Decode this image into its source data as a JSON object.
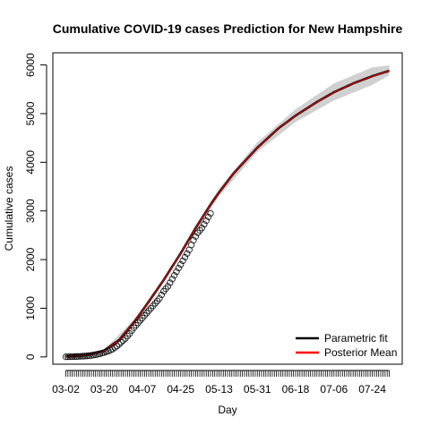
{
  "chart_data": {
    "type": "line",
    "title": "Cumulative COVID-19 cases Prediction for New Hampshire",
    "xlabel": "Day",
    "ylabel": "Cumulative cases",
    "x_start": "03-02",
    "x_end": "08-01",
    "x_tick_labels": [
      "03-02",
      "03-20",
      "04-07",
      "04-25",
      "05-13",
      "05-31",
      "06-18",
      "07-06",
      "07-24"
    ],
    "y_ticks": [
      0,
      1000,
      2000,
      3000,
      4000,
      5000,
      6000
    ],
    "ylim": [
      -150,
      6250
    ],
    "legend": {
      "position": "bottom-right",
      "entries": [
        "Parametric fit",
        "Posterior Mean"
      ]
    },
    "colors": {
      "parametric_fit": "#000000",
      "posterior_mean": "#ff0000",
      "band": "#d0d0d0",
      "observed": "#000000"
    },
    "series": [
      {
        "name": "Parametric fit",
        "x": [
          "03-02",
          "03-12",
          "03-20",
          "03-27",
          "04-03",
          "04-10",
          "04-17",
          "04-25",
          "05-02",
          "05-09",
          "05-13",
          "05-20",
          "05-31",
          "06-10",
          "06-18",
          "06-28",
          "07-06",
          "07-15",
          "07-24",
          "08-01"
        ],
        "values": [
          8,
          35,
          130,
          350,
          710,
          1140,
          1580,
          2130,
          2650,
          3130,
          3380,
          3780,
          4300,
          4700,
          4960,
          5240,
          5440,
          5620,
          5770,
          5880
        ]
      },
      {
        "name": "Posterior Mean",
        "x": [
          "03-02",
          "03-12",
          "03-20",
          "03-27",
          "04-03",
          "04-10",
          "04-17",
          "04-25",
          "05-02",
          "05-09",
          "05-13",
          "05-20",
          "05-31",
          "06-10",
          "06-18",
          "06-28",
          "07-06",
          "07-15",
          "07-24",
          "08-01"
        ],
        "values": [
          8,
          35,
          130,
          350,
          710,
          1140,
          1580,
          2130,
          2650,
          3130,
          3380,
          3780,
          4300,
          4700,
          4960,
          5240,
          5440,
          5620,
          5770,
          5880
        ]
      },
      {
        "name": "Observed",
        "x": [
          "03-02",
          "03-04",
          "03-06",
          "03-08",
          "03-10",
          "03-12",
          "03-14",
          "03-16",
          "03-18",
          "03-20",
          "03-22",
          "03-24",
          "03-26",
          "03-28",
          "03-30",
          "04-01",
          "04-03",
          "04-05",
          "04-07",
          "04-09",
          "04-11",
          "04-13",
          "04-15",
          "04-17",
          "04-19",
          "04-21",
          "04-23",
          "04-25",
          "04-27",
          "04-29",
          "05-01",
          "05-03",
          "05-05",
          "05-07",
          "05-09"
        ],
        "values": [
          2,
          4,
          6,
          10,
          15,
          20,
          30,
          45,
          65,
          90,
          120,
          160,
          220,
          300,
          380,
          480,
          600,
          700,
          800,
          900,
          1000,
          1100,
          1200,
          1350,
          1450,
          1600,
          1750,
          1900,
          2050,
          2200,
          2400,
          2550,
          2650,
          2800,
          2950
        ]
      }
    ],
    "band": {
      "x": [
        "03-02",
        "03-20",
        "04-07",
        "04-25",
        "05-13",
        "05-31",
        "06-18",
        "07-06",
        "07-24",
        "08-01"
      ],
      "lower": [
        0,
        110,
        860,
        2080,
        3300,
        4210,
        4830,
        5270,
        5590,
        5790
      ],
      "upper": [
        20,
        150,
        940,
        2180,
        3460,
        4410,
        5090,
        5620,
        5950,
        5990
      ]
    }
  }
}
